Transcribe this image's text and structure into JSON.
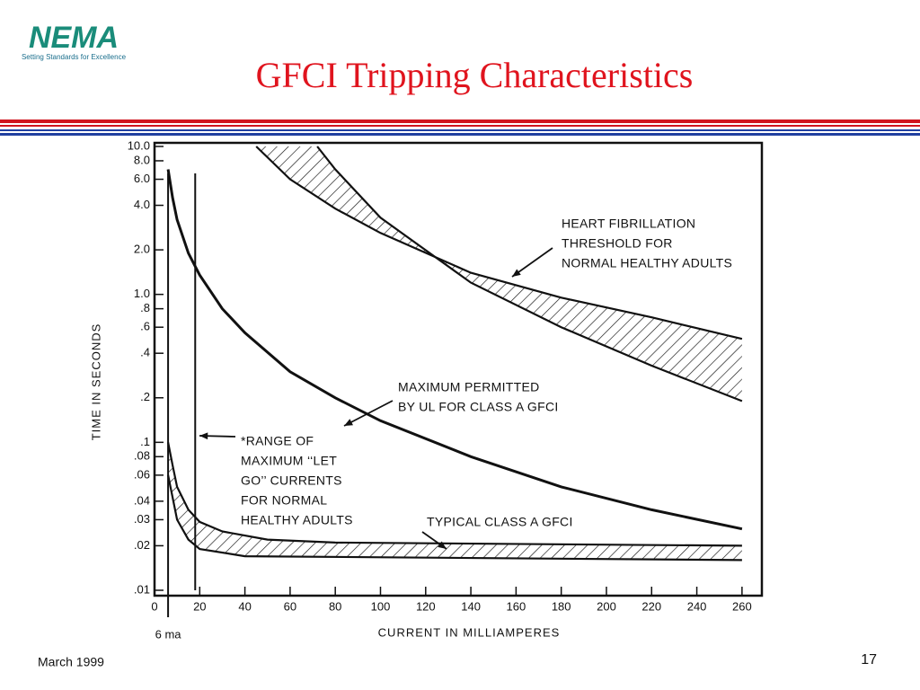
{
  "header": {
    "logo": "NEMA",
    "tagline": "Setting Standards for Excellence",
    "title": "GFCI Tripping Characteristics"
  },
  "footer": {
    "date": "March 1999",
    "page": "17"
  },
  "chart_data": {
    "type": "line",
    "ylabel": "TIME IN SECONDS",
    "xlabel": "CURRENT IN MILLIAMPERES",
    "log_y": true,
    "ylim": [
      0.01,
      10
    ],
    "yticks": [
      {
        "value": 10,
        "label": "10.0"
      },
      {
        "value": 8,
        "label": "8.0"
      },
      {
        "value": 6,
        "label": "6.0"
      },
      {
        "value": 4,
        "label": "4.0"
      },
      {
        "value": 2,
        "label": "2.0"
      },
      {
        "value": 1,
        "label": "1.0"
      },
      {
        "value": 0.8,
        "label": ".8"
      },
      {
        "value": 0.6,
        "label": ".6"
      },
      {
        "value": 0.4,
        "label": ".4"
      },
      {
        "value": 0.2,
        "label": ".2"
      },
      {
        "value": 0.1,
        "label": ".1"
      },
      {
        "value": 0.08,
        "label": ".08"
      },
      {
        "value": 0.06,
        "label": ".06"
      },
      {
        "value": 0.04,
        "label": ".04"
      },
      {
        "value": 0.03,
        "label": ".03"
      },
      {
        "value": 0.02,
        "label": ".02"
      },
      {
        "value": 0.01,
        "label": ".01"
      }
    ],
    "xlim": [
      0,
      268
    ],
    "xticks": [
      0,
      20,
      40,
      60,
      80,
      100,
      120,
      140,
      160,
      180,
      200,
      220,
      240,
      260
    ],
    "let_go_range": [
      6,
      18
    ],
    "let_go_label": "6 ma",
    "series": [
      {
        "color": "#111111",
        "x": [
          45,
          60,
          80,
          100,
          140,
          180,
          220,
          260
        ],
        "values": [
          10,
          6,
          3.8,
          2.6,
          1.4,
          0.95,
          0.7,
          0.5
        ]
      },
      {
        "color": "#111111",
        "x": [
          72,
          80,
          100,
          140,
          180,
          220,
          260
        ],
        "values": [
          10,
          7,
          3.3,
          1.2,
          0.6,
          0.33,
          0.19
        ]
      },
      {
        "color": "#111111",
        "x": [
          6,
          8,
          10,
          15,
          20,
          30,
          40,
          60,
          80,
          100,
          140,
          180,
          220,
          260
        ],
        "values": [
          7,
          4.5,
          3.2,
          1.9,
          1.35,
          0.8,
          0.55,
          0.3,
          0.2,
          0.14,
          0.08,
          0.05,
          0.035,
          0.026
        ]
      },
      {
        "color": "#111111",
        "x": [
          6,
          8,
          10,
          15,
          20,
          30,
          50,
          80,
          260
        ],
        "values": [
          0.1,
          0.07,
          0.05,
          0.035,
          0.029,
          0.025,
          0.022,
          0.021,
          0.02
        ]
      },
      {
        "color": "#111111",
        "x": [
          6,
          10,
          15,
          20,
          40,
          260
        ],
        "values": [
          0.06,
          0.03,
          0.022,
          0.019,
          0.017,
          0.016
        ]
      }
    ],
    "annotations": [
      {
        "lines": [
          "HEART FIBRILLATION",
          "THRESHOLD FOR",
          "NORMAL HEALTHY ADULTS"
        ]
      },
      {
        "lines": [
          "MAXIMUM PERMITTED",
          "BY UL FOR CLASS A GFCI"
        ]
      },
      {
        "lines": [
          "*RANGE OF",
          "MAXIMUM ‘‘LET",
          "GO’’ CURRENTS",
          "FOR NORMAL",
          "HEALTHY ADULTS"
        ]
      },
      {
        "lines": [
          "TYPICAL CLASS A GFCI"
        ]
      }
    ]
  }
}
